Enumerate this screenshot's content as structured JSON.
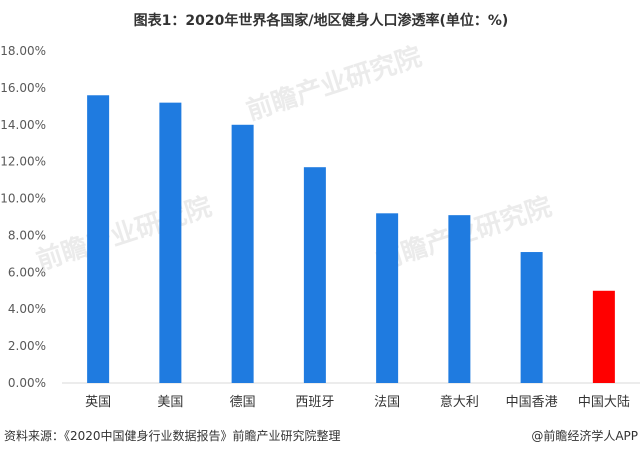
{
  "title": "图表1：2020年世界各国家/地区健身人口渗透率(单位：%)",
  "source": "资料来源：《2020中国健身行业数据报告》前瞻产业研究院整理",
  "credit": "@前瞻经济学人APP",
  "watermark": "前瞻产业研究院",
  "colors": {
    "default_bar": "#1f7be0",
    "highlight_bar": "#ff0000",
    "axis": "#d9d9d9"
  },
  "chart_data": {
    "type": "bar",
    "title": "图表1：2020年世界各国家/地区健身人口渗透率(单位：%)",
    "categories": [
      "英国",
      "美国",
      "德国",
      "西班牙",
      "法国",
      "意大利",
      "中国香港",
      "中国大陆"
    ],
    "values": [
      15.6,
      15.2,
      14.0,
      11.7,
      9.2,
      9.1,
      7.1,
      5.0
    ],
    "highlight": "中国大陆",
    "ylim": [
      0,
      18
    ],
    "yticks": [
      "0.00%",
      "2.00%",
      "4.00%",
      "6.00%",
      "8.00%",
      "10.00%",
      "12.00%",
      "14.00%",
      "16.00%",
      "18.00%"
    ],
    "grid": false,
    "legend": "none"
  }
}
